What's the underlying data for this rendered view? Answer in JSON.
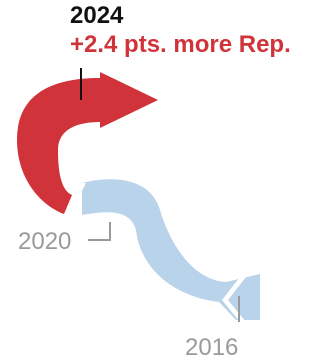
{
  "chart_data": {
    "type": "line",
    "title": "",
    "xlabel": "",
    "ylabel": "",
    "years": [
      "2016",
      "2020",
      "2024"
    ],
    "current": {
      "year": "2024",
      "shift_text": "+2.4 pts. more Rep.",
      "shift_value": 2.4,
      "direction": "Rep."
    },
    "segments": [
      {
        "from": "2016",
        "to": "2020",
        "party_color": "#b9d3ea"
      },
      {
        "from": "2020",
        "to": "2024",
        "party_color": "#d1333a"
      }
    ],
    "colors": {
      "rep": "#d1333a",
      "dem_light": "#b9d3ea",
      "label_gray": "#9a9a9a",
      "leader_black": "#111111"
    }
  }
}
